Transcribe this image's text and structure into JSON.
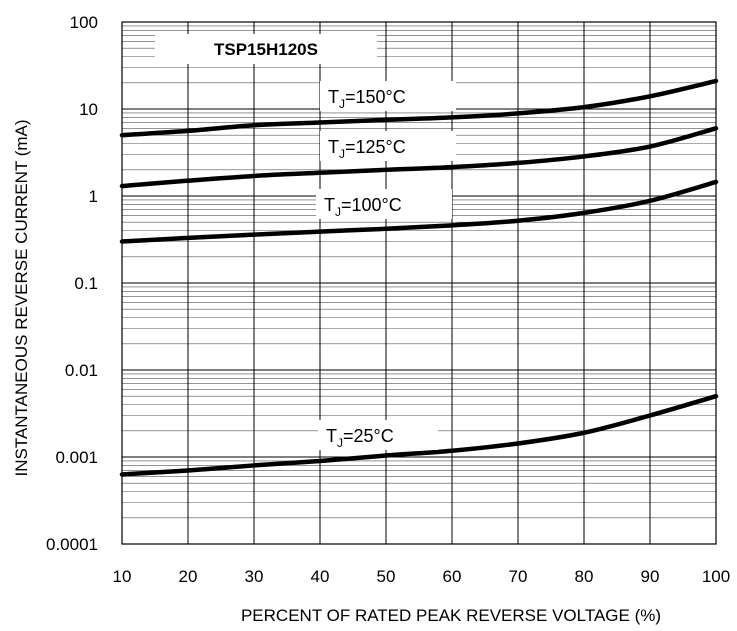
{
  "chart_data": {
    "type": "line",
    "title": "TSP15H120S",
    "xlabel": "PERCENT OF RATED PEAK REVERSE VOLTAGE (%)",
    "ylabel": "INSTANTANEOUS REVERSE CURRENT (mA)",
    "xlim": [
      10,
      100
    ],
    "ylim": [
      0.0001,
      100
    ],
    "yscale": "log",
    "grid": true,
    "x_ticks": [
      "10",
      "20",
      "30",
      "40",
      "50",
      "60",
      "70",
      "80",
      "90",
      "100"
    ],
    "y_ticks": [
      "100",
      "10",
      "1",
      "0.1",
      "0.01",
      "0.001",
      "0.0001"
    ],
    "x": [
      10,
      20,
      30,
      40,
      50,
      60,
      70,
      80,
      90,
      100
    ],
    "series": [
      {
        "name": "TJ=150°C",
        "label_main": "T",
        "label_sub": "J",
        "label_rest": "=150°C",
        "values": [
          5.0,
          5.6,
          6.5,
          7.0,
          7.5,
          8.0,
          8.9,
          10.5,
          14,
          21
        ]
      },
      {
        "name": "TJ=125°C",
        "label_main": "T",
        "label_sub": "J",
        "label_rest": "=125°C",
        "values": [
          1.3,
          1.5,
          1.7,
          1.85,
          2.0,
          2.15,
          2.4,
          2.85,
          3.7,
          6.0
        ]
      },
      {
        "name": "TJ=100°C",
        "label_main": "T",
        "label_sub": "J",
        "label_rest": "=100°C",
        "values": [
          0.3,
          0.33,
          0.36,
          0.39,
          0.42,
          0.46,
          0.52,
          0.64,
          0.88,
          1.45
        ]
      },
      {
        "name": "TJ=25°C",
        "label_main": "T",
        "label_sub": "J",
        "label_rest": "=25°C",
        "values": [
          0.00063,
          0.0007,
          0.0008,
          0.0009,
          0.00104,
          0.00118,
          0.00143,
          0.0019,
          0.003,
          0.005
        ]
      }
    ]
  }
}
